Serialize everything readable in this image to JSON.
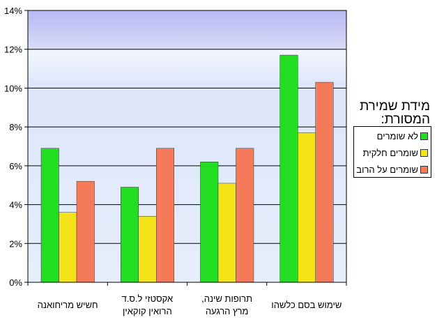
{
  "chart_data": {
    "type": "bar",
    "categories": [
      "חשיש מריחואנה",
      "אקסטזי ל.ס.ד הרואין קוקאין",
      "תרופות שינה, מרץ הרגעה",
      "שימוש בסם כלשהו"
    ],
    "category_lines": [
      [
        "חשיש מריחואנה"
      ],
      [
        "אקסטזי  ל.ס.ד",
        "הרואין קוקאין"
      ],
      [
        "תרופות שינה,",
        "מרץ הרגעה"
      ],
      [
        "שימוש בסם כלשהו"
      ]
    ],
    "series": [
      {
        "name": "לא שומרים",
        "color": "#22dd22",
        "values": [
          6.9,
          4.9,
          6.2,
          11.7
        ]
      },
      {
        "name": "שומרים חלקית",
        "color": "#f5e31a",
        "values": [
          3.6,
          3.4,
          5.1,
          7.7
        ]
      },
      {
        "name": "שומרים על הרוב",
        "color": "#f47a5a",
        "values": [
          5.2,
          6.9,
          6.9,
          10.3
        ]
      }
    ],
    "ylim": [
      0,
      14
    ],
    "yticks": [
      "0%",
      "2%",
      "4%",
      "6%",
      "8%",
      "10%",
      "12%",
      "14%"
    ],
    "legend_title": "מידת שמירת המסורת:",
    "legend_position": "right",
    "grid": true
  }
}
